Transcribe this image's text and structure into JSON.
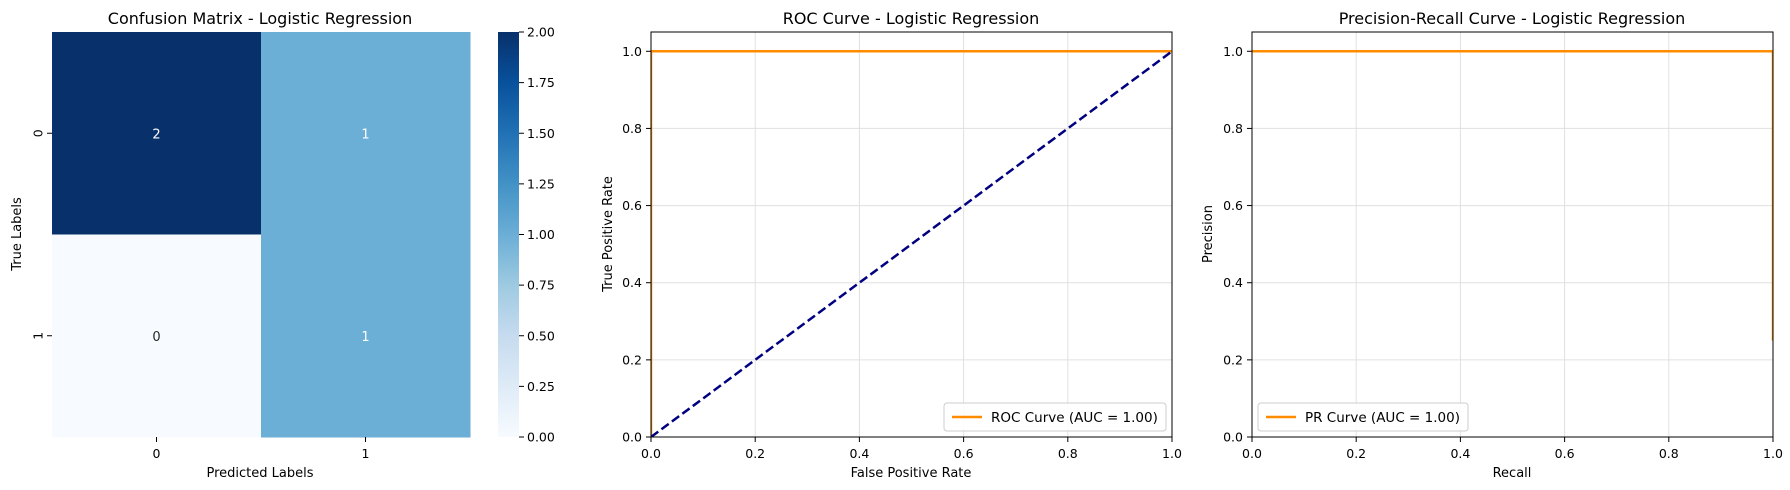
{
  "chart_data": [
    {
      "type": "heatmap",
      "title": "Confusion Matrix - Logistic Regression",
      "xlabel": "Predicted Labels",
      "ylabel": "True Labels",
      "x_categories": [
        "0",
        "1"
      ],
      "y_categories": [
        "0",
        "1"
      ],
      "values": [
        [
          2,
          1
        ],
        [
          0,
          1
        ]
      ],
      "colorbar": {
        "min": 0,
        "max": 2,
        "ticks": [
          "0.00",
          "0.25",
          "0.50",
          "0.75",
          "1.00",
          "1.25",
          "1.50",
          "1.75",
          "2.00"
        ],
        "colormap": "Blues",
        "color_low": "#f7fbff",
        "color_mid": "#6baed6",
        "color_high": "#08306b"
      }
    },
    {
      "type": "line",
      "title": "ROC Curve - Logistic Regression",
      "xlabel": "False Positive Rate",
      "ylabel": "True Positive Rate",
      "xlim": [
        0,
        1
      ],
      "ylim": [
        0,
        1.05
      ],
      "xticks": [
        "0.0",
        "0.2",
        "0.4",
        "0.6",
        "0.8",
        "1.0"
      ],
      "yticks": [
        "0.0",
        "0.2",
        "0.4",
        "0.6",
        "0.8",
        "1.0"
      ],
      "grid": true,
      "legend": "lower right",
      "series": [
        {
          "name": "ROC Curve (AUC = 1.00)",
          "color": "#ff8c00",
          "style": "solid",
          "x": [
            0,
            0,
            1
          ],
          "y": [
            0,
            1,
            1
          ]
        },
        {
          "color": "#000080",
          "style": "dashed",
          "x": [
            0,
            1
          ],
          "y": [
            0,
            1
          ]
        }
      ]
    },
    {
      "type": "line",
      "title": "Precision-Recall Curve - Logistic Regression",
      "xlabel": "Recall",
      "ylabel": "Precision",
      "xlim": [
        0,
        1
      ],
      "ylim": [
        0,
        1.05
      ],
      "xticks": [
        "0.0",
        "0.2",
        "0.4",
        "0.6",
        "0.8",
        "1.0"
      ],
      "yticks": [
        "0.0",
        "0.2",
        "0.4",
        "0.6",
        "0.8",
        "1.0"
      ],
      "grid": true,
      "legend": "lower left",
      "series": [
        {
          "name": "PR Curve (AUC = 1.00)",
          "color": "#ff8c00",
          "style": "solid",
          "x": [
            0,
            1,
            1
          ],
          "y": [
            1,
            1,
            0.25
          ]
        }
      ]
    }
  ]
}
